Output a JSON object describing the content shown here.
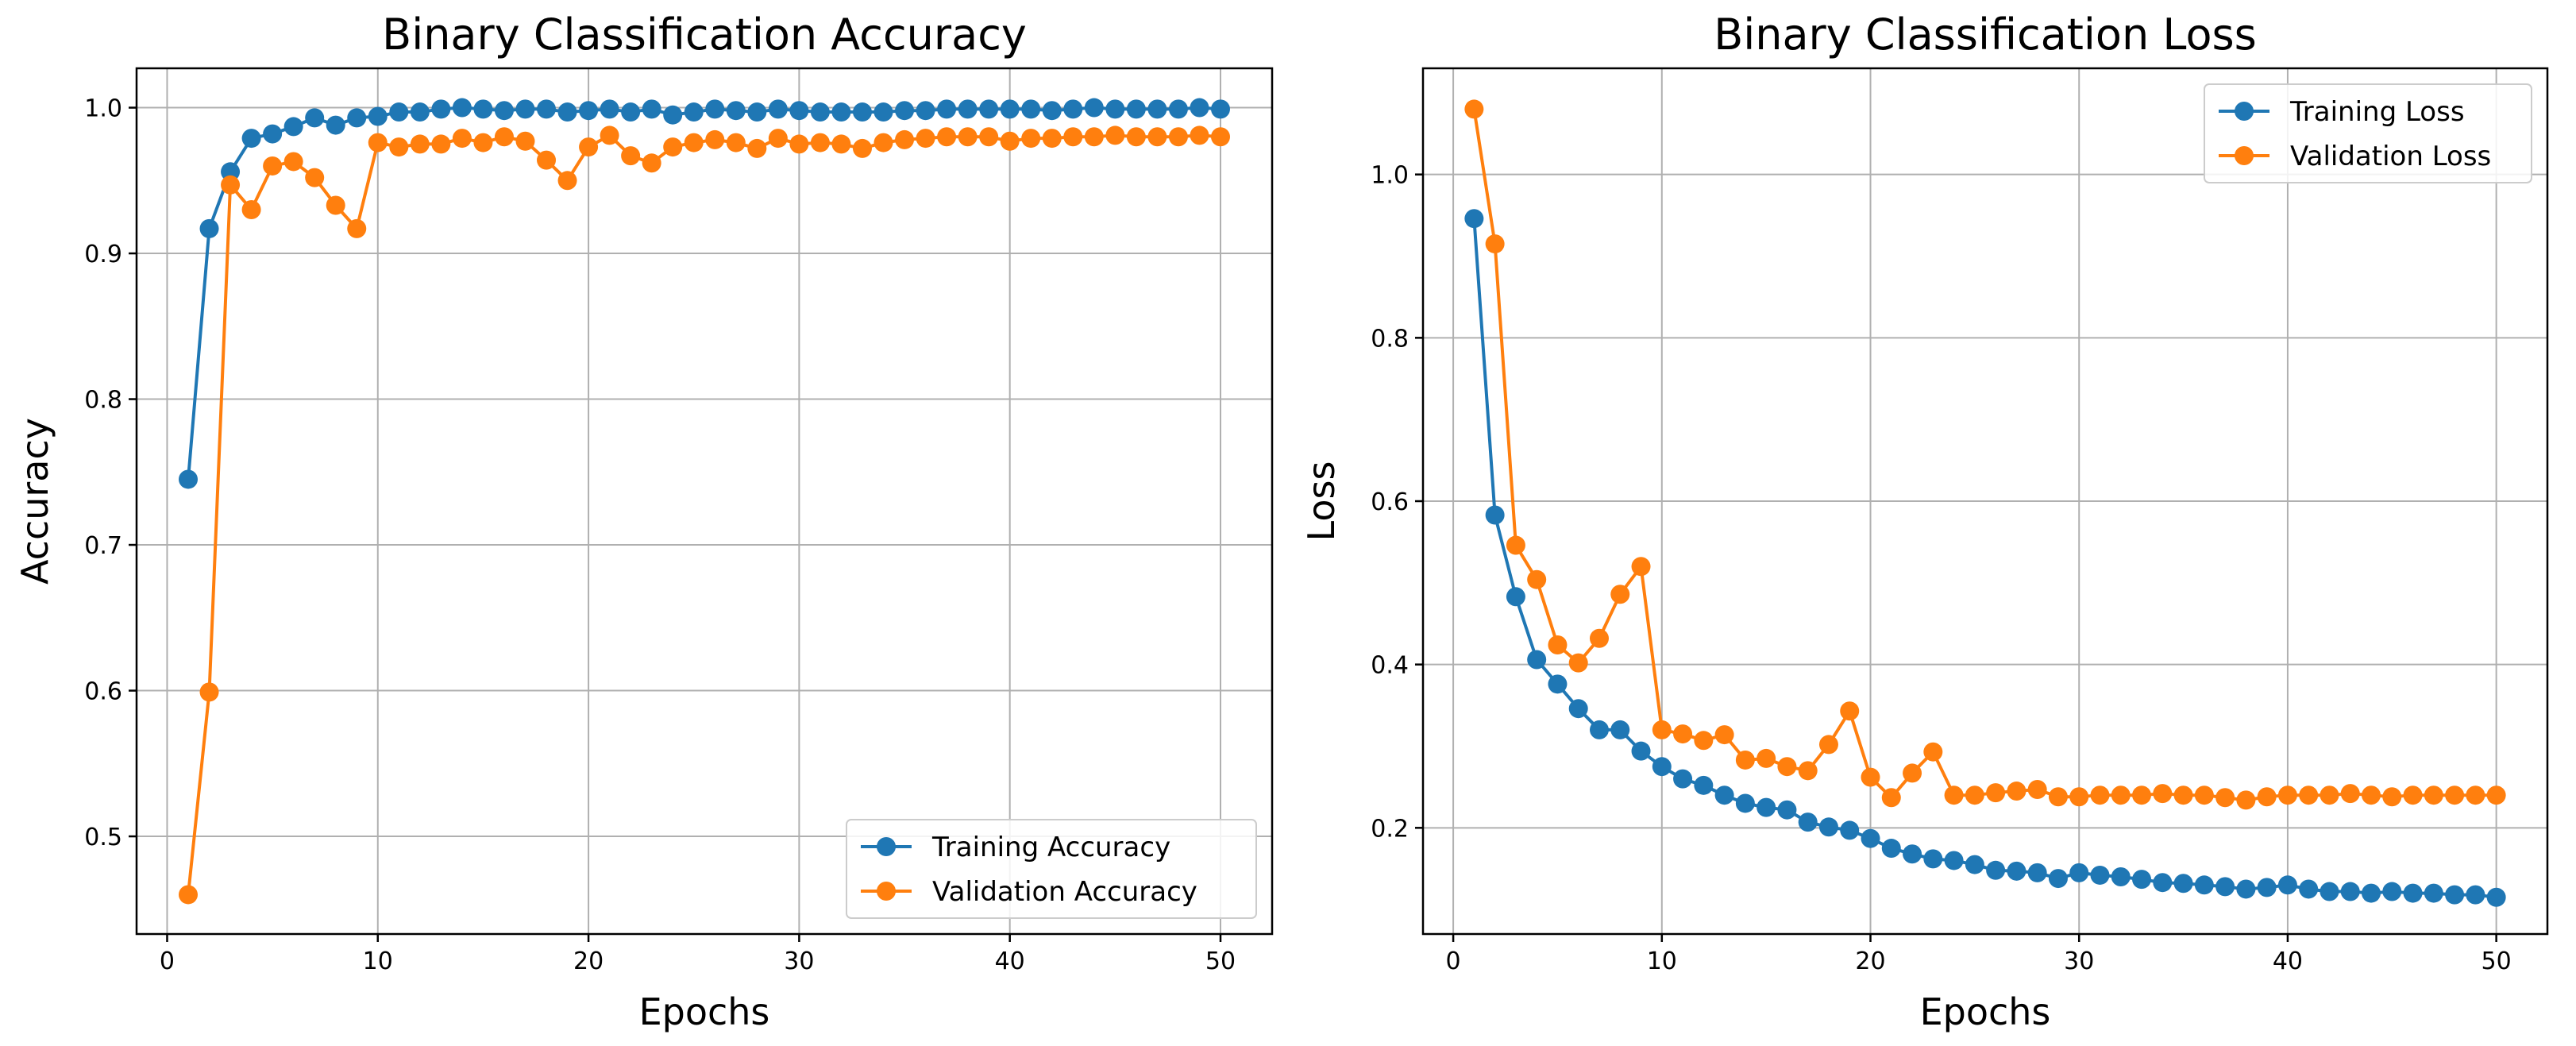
{
  "chart_data": [
    {
      "type": "line",
      "title": "Binary Classification Accuracy",
      "xlabel": "Epochs",
      "ylabel": "Accuracy",
      "xlim": [
        -1.45,
        52.45
      ],
      "ylim": [
        0.433,
        1.027
      ],
      "xticks": [
        0,
        10,
        20,
        30,
        40,
        50
      ],
      "yticks": [
        0.5,
        0.6,
        0.7,
        0.8,
        0.9,
        1.0
      ],
      "xtick_labels": [
        "0",
        "10",
        "20",
        "30",
        "40",
        "50"
      ],
      "ytick_labels": [
        "0.5",
        "0.6",
        "0.7",
        "0.8",
        "0.9",
        "1.0"
      ],
      "grid": true,
      "legend": "lower right",
      "x": [
        1,
        2,
        3,
        4,
        5,
        6,
        7,
        8,
        9,
        10,
        11,
        12,
        13,
        14,
        15,
        16,
        17,
        18,
        19,
        20,
        21,
        22,
        23,
        24,
        25,
        26,
        27,
        28,
        29,
        30,
        31,
        32,
        33,
        34,
        35,
        36,
        37,
        38,
        39,
        40,
        41,
        42,
        43,
        44,
        45,
        46,
        47,
        48,
        49,
        50
      ],
      "series": [
        {
          "name": "Training Accuracy",
          "color": "#1f77b4",
          "values": [
            0.745,
            0.917,
            0.956,
            0.979,
            0.982,
            0.987,
            0.993,
            0.988,
            0.993,
            0.994,
            0.997,
            0.997,
            0.999,
            1.0,
            0.999,
            0.998,
            0.999,
            0.999,
            0.997,
            0.998,
            0.999,
            0.997,
            0.999,
            0.995,
            0.997,
            0.999,
            0.998,
            0.997,
            0.999,
            0.998,
            0.997,
            0.997,
            0.997,
            0.997,
            0.998,
            0.998,
            0.999,
            0.999,
            0.999,
            0.999,
            0.999,
            0.998,
            0.999,
            1.0,
            0.999,
            0.999,
            0.999,
            0.999,
            1.0,
            0.999
          ]
        },
        {
          "name": "Validation Accuracy",
          "color": "#ff7f0e",
          "values": [
            0.46,
            0.599,
            0.947,
            0.93,
            0.96,
            0.963,
            0.952,
            0.933,
            0.917,
            0.976,
            0.973,
            0.975,
            0.975,
            0.979,
            0.976,
            0.98,
            0.977,
            0.964,
            0.95,
            0.973,
            0.981,
            0.967,
            0.962,
            0.973,
            0.976,
            0.978,
            0.976,
            0.972,
            0.979,
            0.975,
            0.976,
            0.975,
            0.972,
            0.976,
            0.978,
            0.979,
            0.98,
            0.98,
            0.98,
            0.977,
            0.979,
            0.979,
            0.98,
            0.98,
            0.981,
            0.98,
            0.98,
            0.98,
            0.981,
            0.98
          ]
        }
      ]
    },
    {
      "type": "line",
      "title": "Binary Classification Loss",
      "xlabel": "Epochs",
      "ylabel": "Loss",
      "xlim": [
        -1.45,
        52.45
      ],
      "ylim": [
        0.07,
        1.13
      ],
      "xticks": [
        0,
        10,
        20,
        30,
        40,
        50
      ],
      "yticks": [
        0.2,
        0.4,
        0.6,
        0.8,
        1.0
      ],
      "xtick_labels": [
        "0",
        "10",
        "20",
        "30",
        "40",
        "50"
      ],
      "ytick_labels": [
        "0.2",
        "0.4",
        "0.6",
        "0.8",
        "1.0"
      ],
      "grid": true,
      "legend": "upper right",
      "x": [
        1,
        2,
        3,
        4,
        5,
        6,
        7,
        8,
        9,
        10,
        11,
        12,
        13,
        14,
        15,
        16,
        17,
        18,
        19,
        20,
        21,
        22,
        23,
        24,
        25,
        26,
        27,
        28,
        29,
        30,
        31,
        32,
        33,
        34,
        35,
        36,
        37,
        38,
        39,
        40,
        41,
        42,
        43,
        44,
        45,
        46,
        47,
        48,
        49,
        50
      ],
      "series": [
        {
          "name": "Training Loss",
          "color": "#1f77b4",
          "values": [
            0.946,
            0.583,
            0.483,
            0.406,
            0.376,
            0.346,
            0.32,
            0.32,
            0.294,
            0.275,
            0.26,
            0.252,
            0.24,
            0.23,
            0.225,
            0.222,
            0.207,
            0.201,
            0.197,
            0.187,
            0.175,
            0.168,
            0.162,
            0.16,
            0.155,
            0.148,
            0.147,
            0.145,
            0.138,
            0.145,
            0.142,
            0.14,
            0.137,
            0.133,
            0.132,
            0.13,
            0.128,
            0.125,
            0.127,
            0.13,
            0.125,
            0.122,
            0.122,
            0.12,
            0.122,
            0.12,
            0.12,
            0.118,
            0.118,
            0.115
          ]
        },
        {
          "name": "Validation Loss",
          "color": "#ff7f0e",
          "values": [
            1.08,
            0.915,
            0.546,
            0.504,
            0.424,
            0.402,
            0.432,
            0.486,
            0.52,
            0.32,
            0.315,
            0.307,
            0.314,
            0.283,
            0.285,
            0.275,
            0.27,
            0.302,
            0.343,
            0.262,
            0.237,
            0.267,
            0.293,
            0.24,
            0.24,
            0.243,
            0.245,
            0.247,
            0.238,
            0.238,
            0.24,
            0.24,
            0.24,
            0.242,
            0.24,
            0.24,
            0.237,
            0.234,
            0.238,
            0.24,
            0.24,
            0.24,
            0.242,
            0.24,
            0.238,
            0.24,
            0.24,
            0.24,
            0.24,
            0.24
          ]
        }
      ]
    }
  ]
}
